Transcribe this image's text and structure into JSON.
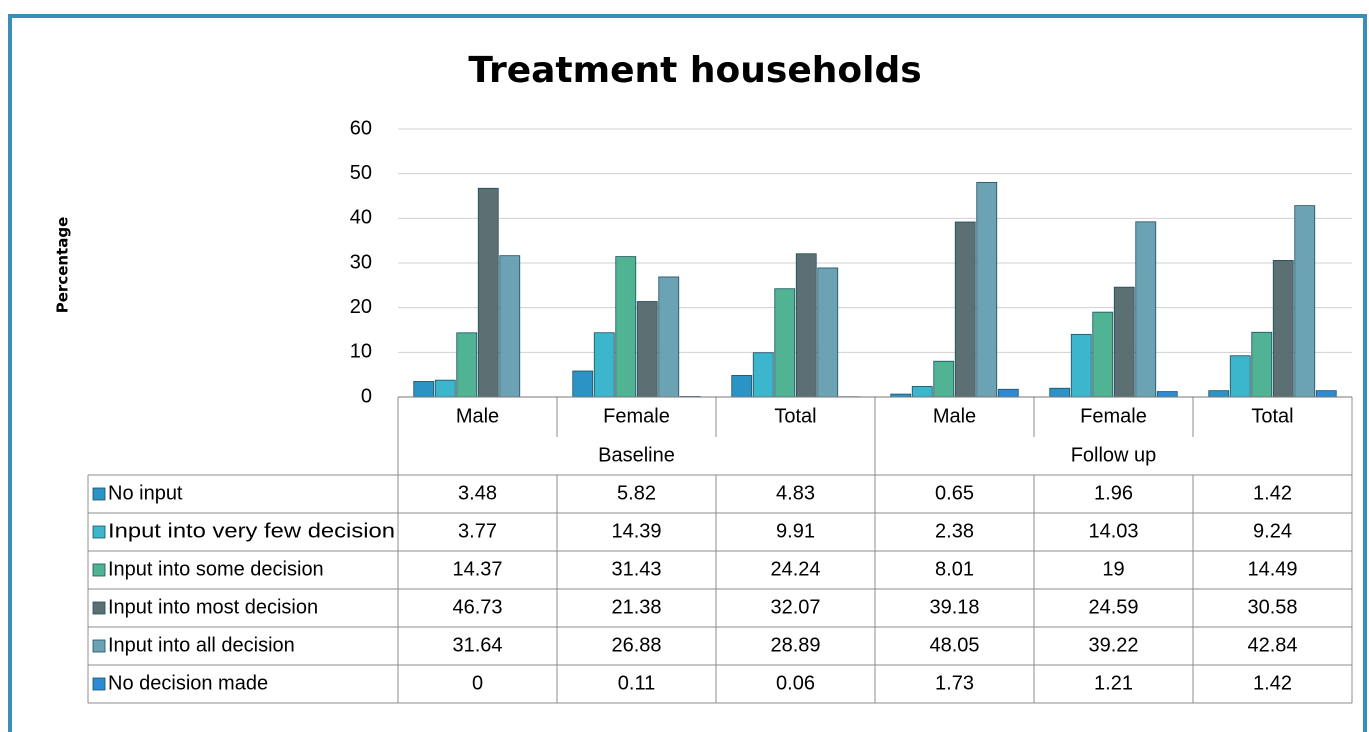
{
  "chart_data": {
    "type": "bar",
    "title": "Treatment households",
    "y_label": "Percentage",
    "categories": [
      "Male",
      "Female",
      "Total",
      "Male",
      "Female",
      "Total"
    ],
    "groups": [
      "Baseline",
      "Follow up"
    ],
    "ylim": [
      0,
      60
    ],
    "yticks": [
      0,
      10,
      20,
      30,
      40,
      50,
      60
    ],
    "grid": true,
    "series": [
      {
        "name": "No input",
        "color": "#2b93c6",
        "values": [
          3.48,
          5.82,
          4.83,
          0.65,
          1.96,
          1.42
        ]
      },
      {
        "name": "Input into very few decision",
        "color": "#3bb6cc",
        "values": [
          3.77,
          14.39,
          9.91,
          2.38,
          14.03,
          9.24
        ]
      },
      {
        "name": "Input into some decision",
        "color": "#4fb394",
        "values": [
          14.37,
          31.43,
          24.24,
          8.01,
          19,
          14.49
        ]
      },
      {
        "name": "Input into most decision",
        "color": "#5c7074",
        "values": [
          46.73,
          21.38,
          32.07,
          39.18,
          24.59,
          30.58
        ]
      },
      {
        "name": "Input into all decision",
        "color": "#6ba3b5",
        "values": [
          31.64,
          26.88,
          28.89,
          48.05,
          39.22,
          42.84
        ]
      },
      {
        "name": "No decision made",
        "color": "#2c8bd4",
        "values": [
          0,
          0.11,
          0.06,
          1.73,
          1.21,
          1.42
        ]
      }
    ]
  }
}
